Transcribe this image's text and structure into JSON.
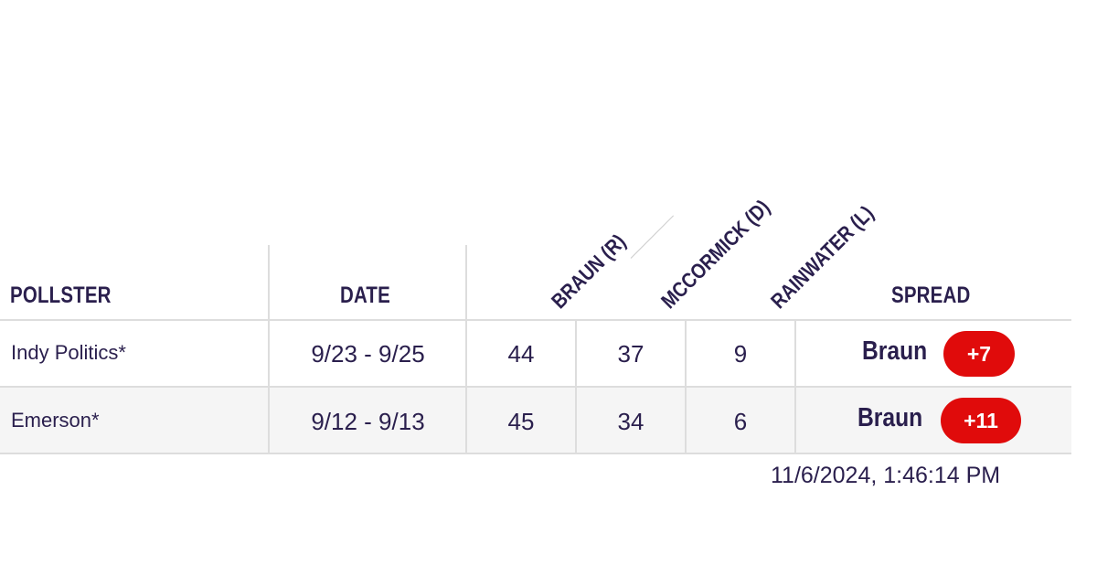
{
  "table": {
    "headers": {
      "pollster": "POLLSTER",
      "date": "DATE",
      "candidates": [
        "BRAUN (R)",
        "MCCORMICK (D)",
        "RAINWATER (L)"
      ],
      "spread": "SPREAD"
    },
    "rows": [
      {
        "pollster": "Indy Politics*",
        "date": "9/23 - 9/25",
        "values": [
          "44",
          "37",
          "9"
        ],
        "spread_leader": "Braun",
        "spread_value": "+7"
      },
      {
        "pollster": "Emerson*",
        "date": "9/12 - 9/13",
        "values": [
          "45",
          "34",
          "6"
        ],
        "spread_leader": "Braun",
        "spread_value": "+11"
      }
    ]
  },
  "footer": {
    "timestamp": "11/6/2024, 1:46:14 PM"
  },
  "colors": {
    "text": "#2a1f4d",
    "badge": "#e00b0b",
    "stripe": "#f5f5f5",
    "gridline": "#dddddd"
  }
}
